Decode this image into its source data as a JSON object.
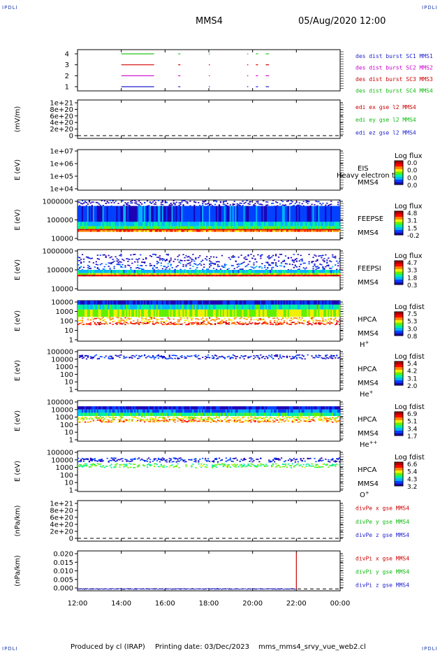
{
  "header": {
    "corner_labels": [
      "IPDLI",
      "IPDLI",
      "IPDLI",
      "IPDLI"
    ],
    "spacecraft": "MMS4",
    "date_time": "05/Aug/2020 12:00"
  },
  "footer": {
    "produced_by": "Produced by cl (IRAP)",
    "printing_date": "Printing date: 03/Dec/2023",
    "file_name": "mms_mms4_srvy_vue_web2.cl"
  },
  "time_axis": {
    "start_hour": 12,
    "end_hour": 24,
    "tick_labels": [
      "12:00",
      "14:00",
      "16:00",
      "18:00",
      "20:00",
      "22:00",
      "00:00"
    ]
  },
  "colors": {
    "axis": "#000000",
    "red": "#d40000",
    "green": "#22c422",
    "magenta": "#cc00cc",
    "blue": "#1f1fcc",
    "label_red": "#cc0000",
    "label_magenta": "#cc00cc",
    "label_green": "#11bb11",
    "label_blue": "#1f1fcc"
  },
  "colormap": [
    "#1c00b4",
    "#0040ff",
    "#00b4ff",
    "#00f0a0",
    "#60f000",
    "#f0f000",
    "#ff8000",
    "#ff0000",
    "#b40000"
  ],
  "chart_data": [
    {
      "id": "burst",
      "type": "event-bars",
      "yticks": [
        "1",
        "2",
        "3",
        "4"
      ],
      "series_labels": [
        "des dist burst SC1 MMS1",
        "des dist burst SC2 MMS2",
        "des dist burst SC3 MMS3",
        "des dist burst SC4 MMS4"
      ],
      "series_colors": [
        "#1f1fcc",
        "#cc00cc",
        "#cc0000",
        "#11bb11"
      ],
      "intervals": [
        {
          "sc": 4,
          "start": 14.0,
          "end": 15.5
        },
        {
          "sc": 4,
          "start": 16.6,
          "end": 16.7
        },
        {
          "sc": 4,
          "start": 18.0,
          "end": 18.05
        },
        {
          "sc": 4,
          "start": 19.75,
          "end": 19.8
        },
        {
          "sc": 4,
          "start": 20.15,
          "end": 20.25
        },
        {
          "sc": 4,
          "start": 20.6,
          "end": 20.75
        },
        {
          "sc": 3,
          "start": 14.0,
          "end": 15.5
        },
        {
          "sc": 3,
          "start": 16.6,
          "end": 16.7
        },
        {
          "sc": 3,
          "start": 18.0,
          "end": 18.05
        },
        {
          "sc": 3,
          "start": 19.75,
          "end": 19.8
        },
        {
          "sc": 3,
          "start": 20.15,
          "end": 20.25
        },
        {
          "sc": 3,
          "start": 20.6,
          "end": 20.75
        },
        {
          "sc": 2,
          "start": 14.0,
          "end": 15.5
        },
        {
          "sc": 2,
          "start": 16.6,
          "end": 16.7
        },
        {
          "sc": 2,
          "start": 18.0,
          "end": 18.05
        },
        {
          "sc": 2,
          "start": 19.75,
          "end": 19.8
        },
        {
          "sc": 2,
          "start": 20.15,
          "end": 20.25
        },
        {
          "sc": 2,
          "start": 20.6,
          "end": 20.75
        },
        {
          "sc": 1,
          "start": 14.0,
          "end": 15.5
        },
        {
          "sc": 1,
          "start": 16.6,
          "end": 16.7
        },
        {
          "sc": 1,
          "start": 18.0,
          "end": 18.05
        },
        {
          "sc": 1,
          "start": 19.75,
          "end": 19.8
        },
        {
          "sc": 1,
          "start": 20.15,
          "end": 20.25
        },
        {
          "sc": 1,
          "start": 20.6,
          "end": 20.75
        }
      ]
    },
    {
      "id": "edi",
      "type": "line",
      "ylabel": "(mV/m)",
      "yticks": [
        "0",
        "2e+20",
        "4e+20",
        "6e+20",
        "8e+20",
        "1e+21"
      ],
      "series_labels": [
        "edi ex gse l2 MMS4",
        "edi ey gse l2 MMS4",
        "edi ez gse l2 MMS4"
      ],
      "series_colors": [
        "#cc0000",
        "#11bb11",
        "#1f1fcc"
      ],
      "values": [],
      "dashed_zero": true
    },
    {
      "id": "eis",
      "type": "spectrogram",
      "ylabel": "E (eV)",
      "yticks": [
        "1e+07",
        "1e+06",
        "1e+05",
        "1e+04"
      ],
      "instrument": "EIS",
      "sc": "MMS4",
      "overlap_text": "Heavy electron to",
      "cb_title": "Log flux",
      "cb_ticks": [
        "0.0",
        "0.0",
        "0.0",
        "0.0"
      ],
      "empty": true
    },
    {
      "id": "feepse",
      "type": "spectrogram",
      "ylabel": "E (eV)",
      "yticks": [
        "1000000",
        "100000",
        "10000"
      ],
      "instrument": "FEEPSE",
      "sc": "MMS4",
      "cb_title": "Log flux",
      "cb_ticks": [
        "4.8",
        "3.1",
        "1.5",
        "-0.2"
      ],
      "bands": [
        {
          "from": 0.0,
          "to": 0.15,
          "level": 0.0,
          "sparse": true
        },
        {
          "from": 0.15,
          "to": 0.55,
          "level": 0.12
        },
        {
          "from": 0.55,
          "to": 0.66,
          "level": 0.3
        },
        {
          "from": 0.66,
          "to": 0.73,
          "level": 0.45
        },
        {
          "from": 0.73,
          "to": 0.76,
          "level": 0.95
        },
        {
          "from": 0.76,
          "to": 0.8,
          "level": 0.75
        }
      ]
    },
    {
      "id": "feepsi",
      "type": "spectrogram",
      "ylabel": "E (eV)",
      "yticks": [
        "1000000",
        "100000",
        "10000"
      ],
      "instrument": "FEEPSI",
      "sc": "MMS4",
      "cb_title": "Log flux",
      "cb_ticks": [
        "4.7",
        "3.3",
        "1.8",
        "0.3"
      ],
      "bands": [
        {
          "from": 0.1,
          "to": 0.32,
          "level": 0.0,
          "sparse": true
        },
        {
          "from": 0.32,
          "to": 0.5,
          "level": 0.1,
          "sparse": true
        },
        {
          "from": 0.5,
          "to": 0.58,
          "level": 0.28
        },
        {
          "from": 0.58,
          "to": 0.62,
          "level": 0.55
        },
        {
          "from": 0.62,
          "to": 0.66,
          "level": 0.95
        }
      ]
    },
    {
      "id": "hpca-h",
      "type": "spectrogram",
      "ylabel": "E (eV)",
      "yticks": [
        "10000",
        "1000",
        "100",
        "10",
        "1"
      ],
      "instrument": "HPCA",
      "sc": "MMS4",
      "ion": "H",
      "ion_sup": "+",
      "cb_title": "Log fdist",
      "cb_ticks": [
        "7.5",
        "5.3",
        "3.0",
        "0.8"
      ],
      "bands": [
        {
          "from": 0.0,
          "to": 0.1,
          "level": 0.05
        },
        {
          "from": 0.1,
          "to": 0.22,
          "level": 0.35
        },
        {
          "from": 0.22,
          "to": 0.4,
          "level": 0.55
        },
        {
          "from": 0.4,
          "to": 0.52,
          "level": 0.7,
          "sparse": true
        },
        {
          "from": 0.52,
          "to": 0.58,
          "level": 0.85,
          "sparse": true
        }
      ]
    },
    {
      "id": "hpca-he1",
      "type": "spectrogram",
      "ylabel": "E (eV)",
      "yticks": [
        "100000",
        "10000",
        "1000",
        "100",
        "10",
        "1"
      ],
      "instrument": "HPCA",
      "sc": "MMS4",
      "ion": "He",
      "ion_sup": "+",
      "cb_title": "Log fdist",
      "cb_ticks": [
        "5.4",
        "4.2",
        "3.1",
        "2.0"
      ],
      "bands": [
        {
          "from": 0.1,
          "to": 0.2,
          "level": 0.05,
          "sparse": true
        }
      ]
    },
    {
      "id": "hpca-he2",
      "type": "spectrogram",
      "ylabel": "E (eV)",
      "yticks": [
        "100000",
        "10000",
        "1000",
        "100",
        "10",
        "1"
      ],
      "instrument": "HPCA",
      "sc": "MMS4",
      "ion": "He",
      "ion_sup": "++",
      "cb_title": "Log fdist",
      "cb_ticks": [
        "6.9",
        "5.1",
        "3.4",
        "1.7"
      ],
      "bands": [
        {
          "from": 0.14,
          "to": 0.22,
          "level": 0.05
        },
        {
          "from": 0.22,
          "to": 0.3,
          "level": 0.2
        },
        {
          "from": 0.3,
          "to": 0.38,
          "level": 0.4
        },
        {
          "from": 0.38,
          "to": 0.46,
          "level": 0.6,
          "sparse": true
        },
        {
          "from": 0.46,
          "to": 0.52,
          "level": 0.75,
          "sparse": true
        }
      ]
    },
    {
      "id": "hpca-o",
      "type": "spectrogram",
      "ylabel": "E (eV)",
      "yticks": [
        "100000",
        "10000",
        "1000",
        "100",
        "10",
        "1"
      ],
      "instrument": "HPCA",
      "sc": "MMS4",
      "ion": "O",
      "ion_sup": "+",
      "cb_title": "Log fdist",
      "cb_ticks": [
        "6.6",
        "5.4",
        "4.3",
        "3.2"
      ],
      "bands": [
        {
          "from": 0.16,
          "to": 0.26,
          "level": 0.05,
          "sparse": true
        },
        {
          "from": 0.3,
          "to": 0.4,
          "level": 0.45,
          "sparse": true
        }
      ]
    },
    {
      "id": "divpe",
      "type": "line",
      "ylabel": "(nPa/km)",
      "yticks": [
        "0",
        "2e+20",
        "4e+20",
        "6e+20",
        "8e+20",
        "1e+21"
      ],
      "series_labels": [
        "divPe x gse MMS4",
        "divPe y gse MMS4",
        "divPe z gse MMS4"
      ],
      "series_colors": [
        "#cc0000",
        "#11bb11",
        "#1f1fcc"
      ],
      "values": [],
      "dashed_zero": true
    },
    {
      "id": "divpi",
      "type": "line",
      "ylabel": "(nPa/km)",
      "yticks": [
        "0.000",
        "0.005",
        "0.010",
        "0.015",
        "0.020"
      ],
      "ylim": [
        -0.001,
        0.021
      ],
      "series_labels": [
        "divPi x gse MMS4",
        "divPi y gse MMS4",
        "divPi z gse MMS4"
      ],
      "series_colors": [
        "#cc0000",
        "#11bb11",
        "#1f1fcc"
      ],
      "dashed_zero": true,
      "spike": {
        "x": 22.0,
        "y": 0.02,
        "color": "#cc0000"
      },
      "baseline_noise": 0.0006,
      "baseline_end": 22.0
    }
  ]
}
